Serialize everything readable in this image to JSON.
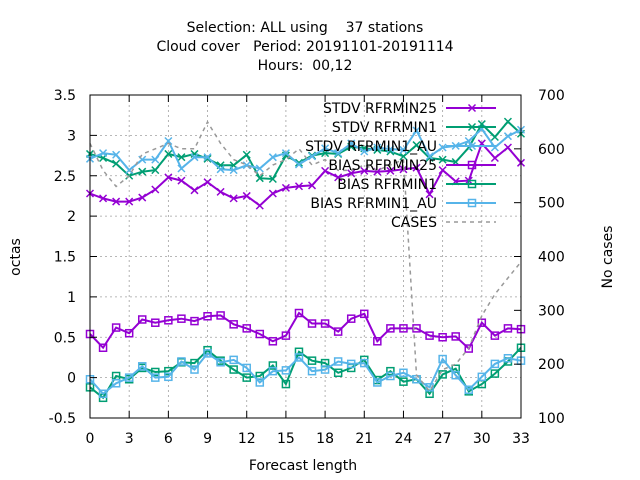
{
  "chart_data": {
    "type": "line",
    "title_lines": [
      "Selection: ALL using    37 stations",
      "Cloud cover   Period: 20191101-20191114",
      "Hours:  00,12"
    ],
    "xlabel": "Forecast length",
    "ylabel": "octas",
    "y2label": "No cases",
    "xlim": [
      0,
      33
    ],
    "ylim": [
      -0.5,
      3.5
    ],
    "y2lim": [
      100,
      700
    ],
    "x_ticks": [
      0,
      3,
      6,
      9,
      12,
      15,
      18,
      21,
      24,
      27,
      30,
      33
    ],
    "y_ticks": [
      "-0.5",
      "0",
      "0.5",
      "1",
      "1.5",
      "2",
      "2.5",
      "3",
      "3.5"
    ],
    "y_tick_values": [
      -0.5,
      0,
      0.5,
      1,
      1.5,
      2,
      2.5,
      3,
      3.5
    ],
    "y2_ticks": [
      "100",
      "200",
      "300",
      "400",
      "500",
      "600",
      "700"
    ],
    "y2_tick_values": [
      100,
      200,
      300,
      400,
      500,
      600,
      700
    ],
    "grid": true,
    "legend_position": "top-right",
    "x": [
      0,
      1,
      2,
      3,
      4,
      5,
      6,
      7,
      8,
      9,
      10,
      11,
      12,
      13,
      14,
      15,
      16,
      17,
      18,
      19,
      20,
      21,
      22,
      23,
      24,
      25,
      26,
      27,
      28,
      29,
      30,
      31,
      32,
      33
    ],
    "series": [
      {
        "name": "STDV RFRMIN25",
        "axis": "y1",
        "color": "#9400d3",
        "marker": "x",
        "values": [
          2.28,
          2.22,
          2.18,
          2.18,
          2.23,
          2.33,
          2.48,
          2.44,
          2.32,
          2.42,
          2.3,
          2.22,
          2.25,
          2.13,
          2.28,
          2.35,
          2.37,
          2.38,
          2.56,
          2.48,
          2.53,
          2.56,
          2.55,
          2.56,
          2.58,
          2.6,
          2.27,
          2.57,
          2.43,
          2.44,
          2.9,
          2.72,
          2.85,
          2.66
        ]
      },
      {
        "name": "STDV RFRMIN1",
        "axis": "y1",
        "color": "#009e73",
        "marker": "x",
        "values": [
          2.77,
          2.72,
          2.65,
          2.5,
          2.55,
          2.57,
          2.77,
          2.73,
          2.77,
          2.71,
          2.63,
          2.63,
          2.76,
          2.47,
          2.46,
          2.75,
          2.66,
          2.75,
          2.78,
          2.77,
          2.86,
          2.84,
          2.82,
          2.8,
          2.74,
          2.88,
          2.72,
          2.7,
          2.67,
          2.85,
          3.14,
          2.98,
          3.17,
          3.02
        ]
      },
      {
        "name": "STDV RFRMIN1_AU",
        "axis": "y1",
        "color": "#56b4e9",
        "marker": "x",
        "values": [
          2.71,
          2.78,
          2.76,
          2.57,
          2.7,
          2.7,
          2.93,
          2.59,
          2.73,
          2.73,
          2.58,
          2.57,
          2.63,
          2.59,
          2.73,
          2.78,
          2.64,
          2.74,
          2.84,
          2.78,
          2.9,
          2.8,
          2.85,
          2.83,
          2.82,
          3.06,
          2.74,
          2.85,
          2.87,
          2.93,
          3.08,
          2.85,
          2.99,
          3.07
        ]
      },
      {
        "name": "BIAS RFRMIN25",
        "axis": "y1",
        "color": "#9400d3",
        "marker": "square",
        "values": [
          0.54,
          0.37,
          0.62,
          0.55,
          0.72,
          0.68,
          0.71,
          0.73,
          0.7,
          0.76,
          0.77,
          0.66,
          0.61,
          0.54,
          0.45,
          0.52,
          0.8,
          0.67,
          0.67,
          0.57,
          0.73,
          0.79,
          0.45,
          0.61,
          0.61,
          0.61,
          0.52,
          0.5,
          0.51,
          0.36,
          0.68,
          0.52,
          0.61,
          0.6
        ]
      },
      {
        "name": "BIAS RFRMIN1",
        "axis": "y1",
        "color": "#009e73",
        "marker": "square",
        "values": [
          -0.12,
          -0.25,
          0.02,
          -0.02,
          0.12,
          0.07,
          0.08,
          0.19,
          0.18,
          0.34,
          0.21,
          0.1,
          0.0,
          0.02,
          0.15,
          -0.08,
          0.32,
          0.21,
          0.18,
          0.06,
          0.12,
          0.22,
          -0.03,
          0.08,
          -0.05,
          -0.02,
          -0.2,
          0.04,
          0.11,
          -0.17,
          -0.08,
          0.05,
          0.2,
          0.37
        ]
      },
      {
        "name": "BIAS RFRMIN1_AU",
        "axis": "y1",
        "color": "#56b4e9",
        "marker": "square",
        "values": [
          -0.02,
          -0.2,
          -0.07,
          0.0,
          0.14,
          0.0,
          0.01,
          0.2,
          0.1,
          0.3,
          0.19,
          0.22,
          0.12,
          -0.06,
          0.08,
          0.09,
          0.25,
          0.08,
          0.1,
          0.2,
          0.17,
          0.18,
          -0.06,
          0.02,
          0.06,
          -0.02,
          -0.12,
          0.23,
          0.03,
          -0.15,
          0.01,
          0.17,
          0.24,
          0.21
        ]
      },
      {
        "name": "CASES",
        "axis": "y2",
        "color": "#999999",
        "marker": "none",
        "dashed": true,
        "values": [
          610,
          560,
          530,
          550,
          590,
          600,
          610,
          600,
          600,
          650,
          610,
          580,
          570,
          550,
          570,
          580,
          600,
          570,
          580,
          560,
          560,
          570,
          560,
          570,
          580,
          180,
          150,
          190,
          200,
          230,
          290,
          330,
          360,
          390
        ]
      }
    ]
  }
}
